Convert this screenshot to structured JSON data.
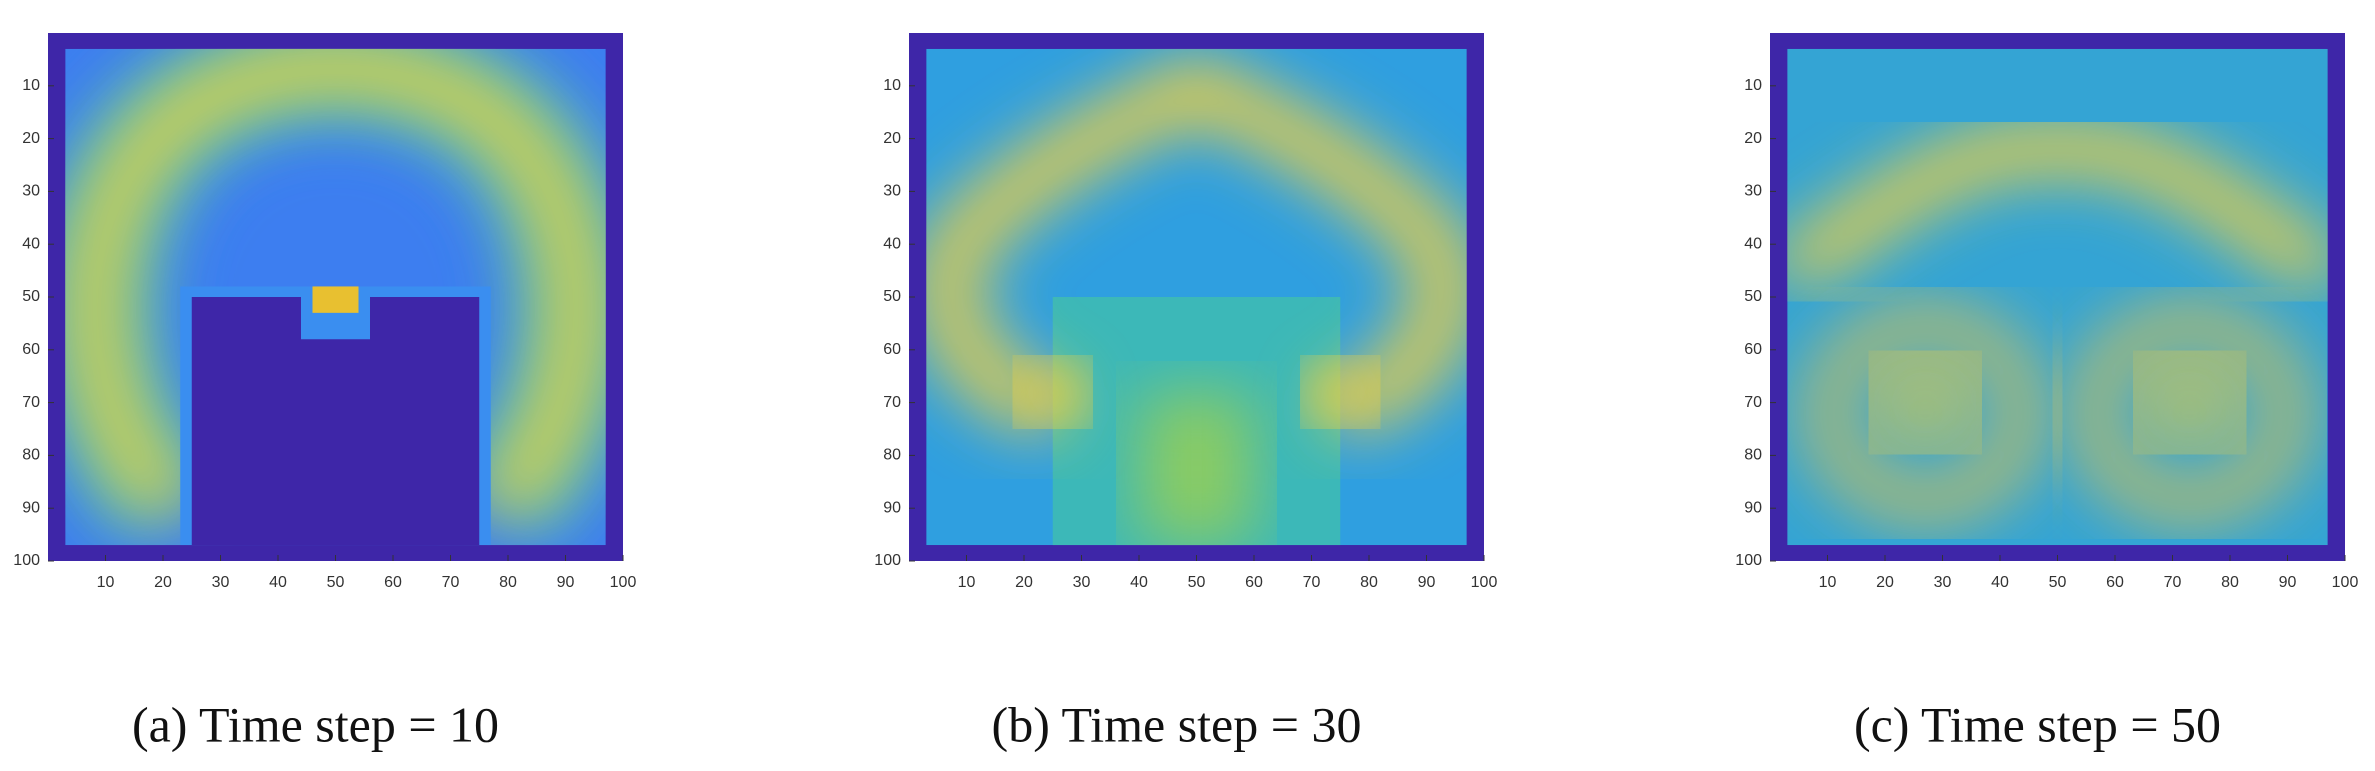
{
  "chart_data": [
    {
      "type": "image",
      "caption": "(a) Time step = 10",
      "xlim": [
        0,
        100
      ],
      "ylim": [
        100,
        0
      ],
      "xticks": [
        10,
        20,
        30,
        40,
        50,
        60,
        70,
        80,
        90,
        100
      ],
      "yticks": [
        10,
        20,
        30,
        40,
        50,
        60,
        70,
        80,
        90,
        100
      ]
    },
    {
      "type": "image",
      "caption": "(b) Time step = 30",
      "xlim": [
        0,
        100
      ],
      "ylim": [
        100,
        0
      ],
      "xticks": [
        10,
        20,
        30,
        40,
        50,
        60,
        70,
        80,
        90,
        100
      ],
      "yticks": [
        10,
        20,
        30,
        40,
        50,
        60,
        70,
        80,
        90,
        100
      ]
    },
    {
      "type": "image",
      "caption": "(c) Time step = 50",
      "xlim": [
        0,
        100
      ],
      "ylim": [
        100,
        0
      ],
      "xticks": [
        10,
        20,
        30,
        40,
        50,
        60,
        70,
        80,
        90,
        100
      ],
      "yticks": [
        10,
        20,
        30,
        40,
        50,
        60,
        70,
        80,
        90,
        100
      ]
    }
  ]
}
